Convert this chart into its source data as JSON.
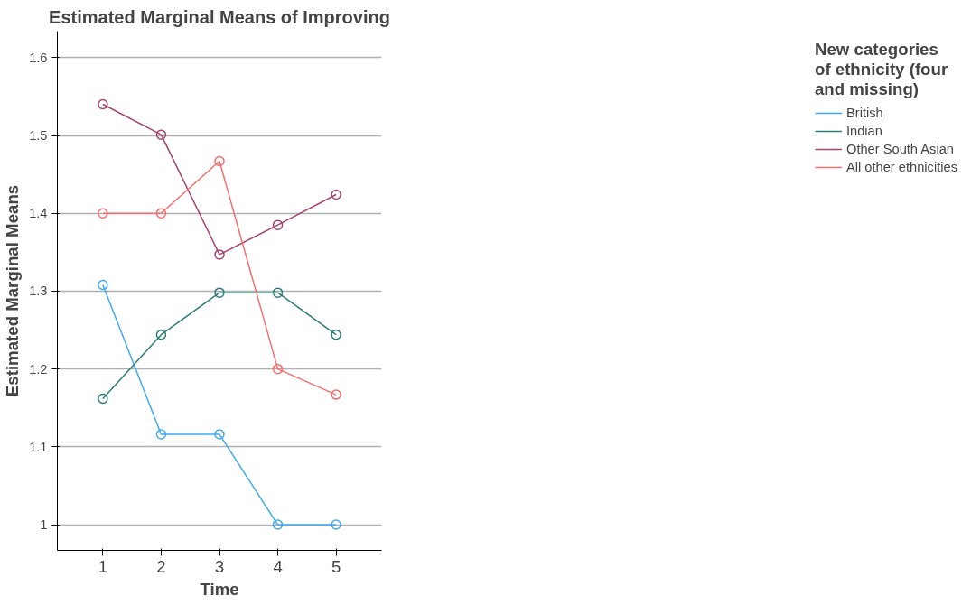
{
  "chart_data": {
    "type": "line",
    "title": "Estimated Marginal Means of Improving",
    "xlabel": "Time",
    "ylabel": "Estimated Marginal Means",
    "legend_title": "New categories\nof ethnicity (four\nand missing)",
    "x": [
      1,
      2,
      3,
      4,
      5
    ],
    "xlim": [
      0.22,
      5.78
    ],
    "xticks": [
      1,
      2,
      3,
      4,
      5
    ],
    "ylim": [
      0.967,
      1.634
    ],
    "yticks": [
      1.0,
      1.1,
      1.2,
      1.3,
      1.4,
      1.5,
      1.6
    ],
    "series": [
      {
        "name": "British",
        "color": "#3fa9f5",
        "values": [
          1.308,
          1.116,
          1.116,
          1.0,
          1.0
        ]
      },
      {
        "name": "Indian",
        "color": "#2e7d74",
        "values": [
          1.162,
          1.244,
          1.298,
          1.298,
          1.244
        ]
      },
      {
        "name": "Other South Asian",
        "color": "#a8426e",
        "values": [
          1.54,
          1.501,
          1.347,
          1.385,
          1.424
        ]
      },
      {
        "name": "All other ethnicities",
        "color": "#f86d6d",
        "values": [
          1.4,
          1.4,
          1.467,
          1.2,
          1.167
        ]
      }
    ],
    "grid": "y",
    "legend": "right",
    "marker": "circle",
    "line_style": "solid"
  }
}
